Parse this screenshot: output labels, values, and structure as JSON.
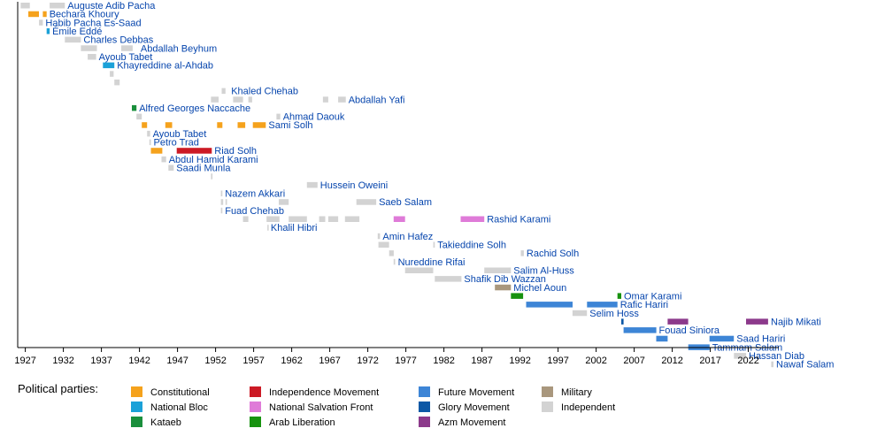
{
  "chart_data": {
    "type": "timeline",
    "x_range": [
      1926,
      2026
    ],
    "x_ticks": [
      1927,
      1932,
      1937,
      1942,
      1947,
      1952,
      1957,
      1962,
      1967,
      1972,
      1977,
      1982,
      1987,
      1992,
      1997,
      2002,
      2007,
      2012,
      2017,
      2022
    ],
    "legend_title": "Political parties:",
    "parties": [
      {
        "key": "constitutional",
        "name": "Constitutional",
        "color": "#f5a21c"
      },
      {
        "key": "national_bloc",
        "name": "National Bloc",
        "color": "#1ba1d8"
      },
      {
        "key": "kataeb",
        "name": "Kataeb",
        "color": "#1a8f3c"
      },
      {
        "key": "independence",
        "name": "Independence Movement",
        "color": "#cc1a25"
      },
      {
        "key": "nsf",
        "name": "National Salvation Front",
        "color": "#df7bd8"
      },
      {
        "key": "arab_liberation",
        "name": "Arab Liberation",
        "color": "#17920f"
      },
      {
        "key": "future",
        "name": "Future Movement",
        "color": "#3d85d6"
      },
      {
        "key": "glory",
        "name": "Glory Movement",
        "color": "#0c58a6"
      },
      {
        "key": "azm",
        "name": "Azm Movement",
        "color": "#8c3a8b"
      },
      {
        "key": "military",
        "name": "Military",
        "color": "#a9977d"
      },
      {
        "key": "independent",
        "name": "Independent",
        "color": "#d3d3d3"
      }
    ],
    "rows": [
      {
        "name": "Auguste Adib Pacha",
        "label_x": 1932.2,
        "terms": [
          [
            1926.4,
            1927.6,
            "independent"
          ],
          [
            1930.2,
            1932.2,
            "independent"
          ]
        ]
      },
      {
        "name": "Bechara Khoury",
        "label_x": 1929.8,
        "terms": [
          [
            1927.4,
            1928.8,
            "constitutional"
          ],
          [
            1929.3,
            1929.8,
            "constitutional"
          ]
        ]
      },
      {
        "name": "Habib Pacha Es-Saad",
        "label_x": 1929.3,
        "terms": [
          [
            1928.8,
            1929.3,
            "independent"
          ]
        ]
      },
      {
        "name": "Émile Eddé",
        "label_x": 1930.2,
        "terms": [
          [
            1929.8,
            1930.2,
            "national_bloc"
          ]
        ]
      },
      {
        "name": "Charles Debbas",
        "label_x": 1934.3,
        "terms": [
          [
            1932.2,
            1934.3,
            "independent"
          ]
        ]
      },
      {
        "name": "Abdallah Beyhum",
        "label_x": 1941.8,
        "terms": [
          [
            1934.3,
            1936.4,
            "independent"
          ],
          [
            1939.6,
            1941.1,
            "independent"
          ]
        ]
      },
      {
        "name": "Ayoub Tabet",
        "label_x": 1936.3,
        "terms": [
          [
            1935.2,
            1936.3,
            "independent"
          ]
        ]
      },
      {
        "name": "Khayreddine al-Ahdab",
        "label_x": 1938.7,
        "terms": [
          [
            1937.2,
            1938.7,
            "national_bloc"
          ]
        ]
      },
      {
        "name": "",
        "label_x": 1938.6,
        "terms": [
          [
            1938.1,
            1938.6,
            "independent"
          ]
        ]
      },
      {
        "name": "",
        "label_x": 1939.4,
        "terms": [
          [
            1938.7,
            1939.4,
            "independent"
          ]
        ]
      },
      {
        "name": "Khaled Chehab",
        "label_x": 1953.7,
        "terms": [
          [
            1952.8,
            1953.3,
            "independent"
          ]
        ]
      },
      {
        "name": "Abdallah Yafi",
        "label_x": 1969.1,
        "terms": [
          [
            1951.4,
            1952.4,
            "independent"
          ],
          [
            1954.3,
            1955.6,
            "independent"
          ],
          [
            1956.3,
            1956.8,
            "independent"
          ],
          [
            1966.1,
            1966.8,
            "independent"
          ],
          [
            1968.1,
            1969.1,
            "independent"
          ]
        ]
      },
      {
        "name": "Alfred Georges Naccache",
        "label_x": 1941.6,
        "terms": [
          [
            1941.0,
            1941.6,
            "kataeb"
          ]
        ]
      },
      {
        "name": "Ahmad Daouk",
        "label_x": 1960.5,
        "terms": [
          [
            1941.6,
            1942.3,
            "independent"
          ],
          [
            1960.0,
            1960.5,
            "independent"
          ]
        ]
      },
      {
        "name": "Sami Solh",
        "label_x": 1958.6,
        "terms": [
          [
            1942.3,
            1943.0,
            "constitutional"
          ],
          [
            1945.4,
            1946.3,
            "constitutional"
          ],
          [
            1952.2,
            1952.9,
            "constitutional"
          ],
          [
            1954.9,
            1955.9,
            "constitutional"
          ],
          [
            1956.9,
            1958.6,
            "constitutional"
          ]
        ]
      },
      {
        "name": "Ayoub Tabet",
        "label_x": 1943.4,
        "terms": [
          [
            1943.0,
            1943.4,
            "independent"
          ]
        ]
      },
      {
        "name": "Petro Trad",
        "label_x": 1943.5,
        "terms": [
          [
            1943.3,
            1943.5,
            "independent"
          ]
        ]
      },
      {
        "name": "Riad Solh",
        "label_x": 1951.5,
        "terms": [
          [
            1943.5,
            1945.0,
            "constitutional"
          ],
          [
            1946.9,
            1951.5,
            "independence"
          ]
        ]
      },
      {
        "name": "Abdul Hamid Karami",
        "label_x": 1945.5,
        "terms": [
          [
            1944.9,
            1945.5,
            "independent"
          ]
        ]
      },
      {
        "name": "Saadi Munla",
        "label_x": 1946.5,
        "terms": [
          [
            1945.8,
            1946.5,
            "independent"
          ]
        ]
      },
      {
        "name": "",
        "label_x": 1951.6,
        "terms": [
          [
            1951.4,
            1951.6,
            "independent"
          ]
        ]
      },
      {
        "name": "Hussein Oweini",
        "label_x": 1965.4,
        "terms": [
          [
            1964.0,
            1965.4,
            "independent"
          ]
        ]
      },
      {
        "name": "Nazem Akkari",
        "label_x": 1952.9,
        "terms": [
          [
            1952.7,
            1952.9,
            "independent"
          ]
        ]
      },
      {
        "name": "Saeb Salam",
        "label_x": 1973.1,
        "terms": [
          [
            1952.7,
            1953.0,
            "independent"
          ],
          [
            1953.3,
            1953.5,
            "independent"
          ],
          [
            1960.3,
            1961.6,
            "independent"
          ],
          [
            1970.5,
            1973.1,
            "independent"
          ]
        ]
      },
      {
        "name": "Fuad Chehab",
        "label_x": 1952.9,
        "terms": [
          [
            1952.7,
            1952.9,
            "independent"
          ]
        ]
      },
      {
        "name": "Rashid Karami",
        "label_x": 1987.3,
        "terms": [
          [
            1955.6,
            1956.3,
            "independent"
          ],
          [
            1958.7,
            1960.4,
            "independent"
          ],
          [
            1961.6,
            1964.0,
            "independent"
          ],
          [
            1965.6,
            1966.4,
            "independent"
          ],
          [
            1966.8,
            1968.1,
            "independent"
          ],
          [
            1969.0,
            1970.9,
            "independent"
          ],
          [
            1975.4,
            1976.9,
            "nsf"
          ],
          [
            1984.2,
            1987.3,
            "nsf"
          ]
        ]
      },
      {
        "name": "Khalil Hibri",
        "label_x": 1958.9,
        "terms": [
          [
            1958.8,
            1958.9,
            "independent"
          ]
        ]
      },
      {
        "name": "Amin Hafez",
        "label_x": 1973.6,
        "terms": [
          [
            1973.3,
            1973.6,
            "independent"
          ]
        ]
      },
      {
        "name": "Takieddine Solh",
        "label_x": 1980.8,
        "terms": [
          [
            1973.4,
            1974.8,
            "independent"
          ],
          [
            1980.6,
            1980.8,
            "independent"
          ]
        ]
      },
      {
        "name": "Rachid Solh",
        "label_x": 1992.5,
        "terms": [
          [
            1974.8,
            1975.4,
            "independent"
          ],
          [
            1992.1,
            1992.5,
            "independent"
          ]
        ]
      },
      {
        "name": "Nureddine Rifai",
        "label_x": 1975.6,
        "terms": [
          [
            1975.4,
            1975.6,
            "independent"
          ]
        ]
      },
      {
        "name": "Salim Al-Huss",
        "label_x": 1990.8,
        "terms": [
          [
            1976.9,
            1980.6,
            "independent"
          ],
          [
            1987.3,
            1990.8,
            "independent"
          ]
        ]
      },
      {
        "name": "Shafik Dib Wazzan",
        "label_x": 1984.3,
        "terms": [
          [
            1980.8,
            1984.3,
            "independent"
          ]
        ]
      },
      {
        "name": "Michel Aoun",
        "label_x": 1990.8,
        "terms": [
          [
            1988.7,
            1990.8,
            "military"
          ]
        ]
      },
      {
        "name": "Omar Karami",
        "label_x": 2005.3,
        "terms": [
          [
            1990.8,
            1992.4,
            "arab_liberation"
          ],
          [
            2004.8,
            2005.3,
            "arab_liberation"
          ]
        ]
      },
      {
        "name": "Rafic Hariri",
        "label_x": 2004.8,
        "terms": [
          [
            1992.8,
            1998.9,
            "future"
          ],
          [
            2000.8,
            2004.8,
            "future"
          ]
        ]
      },
      {
        "name": "Selim Hoss",
        "label_x": 2000.8,
        "terms": [
          [
            1998.9,
            2000.8,
            "independent"
          ]
        ]
      },
      {
        "name": "Najib Mikati",
        "label_x": 2024.6,
        "terms": [
          [
            2005.3,
            2005.6,
            "glory"
          ],
          [
            2011.4,
            2014.1,
            "azm"
          ],
          [
            2021.7,
            2024.6,
            "azm"
          ]
        ]
      },
      {
        "name": "Fouad Siniora",
        "label_x": 2009.9,
        "terms": [
          [
            2005.6,
            2009.9,
            "future"
          ]
        ]
      },
      {
        "name": "Saad Hariri",
        "label_x": 2020.1,
        "terms": [
          [
            2009.9,
            2011.4,
            "future"
          ],
          [
            2016.9,
            2020.1,
            "future"
          ]
        ]
      },
      {
        "name": "Tammam Salam",
        "label_x": 2016.9,
        "terms": [
          [
            2014.1,
            2016.9,
            "future"
          ]
        ]
      },
      {
        "name": "Hassan Diab",
        "label_x": 2021.7,
        "terms": [
          [
            2020.1,
            2021.7,
            "independent"
          ]
        ]
      },
      {
        "name": "Nawaf Salam",
        "label_x": 2025.3,
        "terms": [
          [
            2025.0,
            2025.3,
            "independent"
          ]
        ]
      }
    ]
  }
}
